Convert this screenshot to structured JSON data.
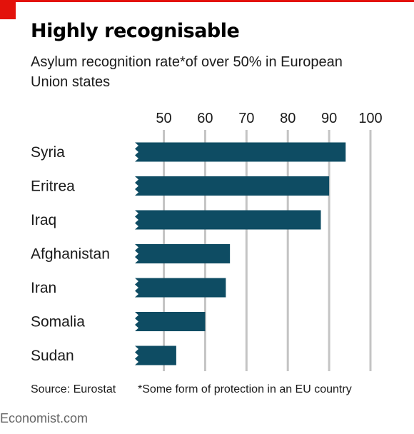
{
  "header": {
    "title": "Highly recognisable",
    "subtitle": "Asylum recognition rate*of over 50% in European Union states"
  },
  "colors": {
    "bar": "#0e4c63",
    "grid": "#c4c4c4",
    "accent": "#e3120b"
  },
  "chart_data": {
    "type": "bar",
    "orientation": "horizontal",
    "title": "Highly recognisable",
    "subtitle": "Asylum recognition rate*of over 50% in European Union states",
    "categories": [
      "Syria",
      "Eritrea",
      "Iraq",
      "Afghanistan",
      "Iran",
      "Somalia",
      "Sudan"
    ],
    "values": [
      94,
      90,
      88,
      66,
      65,
      60,
      53
    ],
    "ticks": [
      "50",
      "60",
      "70",
      "80",
      "90",
      "100"
    ],
    "tick_values": [
      50,
      60,
      70,
      80,
      90,
      100
    ],
    "xlim": [
      43,
      100
    ],
    "axis_break": true,
    "grid": true,
    "tick_position": "top",
    "xlabel": "",
    "ylabel": ""
  },
  "footer": {
    "source": "Source: Eurostat",
    "footnote": "*Some form of protection in an EU country",
    "brand": "Economist.com"
  }
}
